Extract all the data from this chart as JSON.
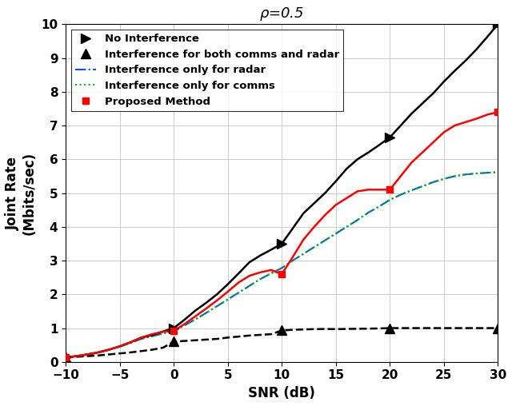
{
  "title": "$\\rho$=0.5",
  "xlabel": "SNR (dB)",
  "ylabel": "Joint Rate\n(Mbits/sec)",
  "xlim": [
    -10,
    30
  ],
  "ylim": [
    0,
    10
  ],
  "xticks": [
    -10,
    -5,
    0,
    5,
    10,
    15,
    20,
    25,
    30
  ],
  "yticks": [
    0,
    1,
    2,
    3,
    4,
    5,
    6,
    7,
    8,
    9,
    10
  ],
  "snr_dense": [
    -10,
    -9,
    -8,
    -7,
    -6,
    -5,
    -4,
    -3,
    -2,
    -1,
    0,
    1,
    2,
    3,
    4,
    5,
    6,
    7,
    8,
    9,
    10,
    11,
    12,
    13,
    14,
    15,
    16,
    17,
    18,
    19,
    20,
    21,
    22,
    23,
    24,
    25,
    26,
    27,
    28,
    29,
    30
  ],
  "snr_markers": [
    -10,
    0,
    10,
    20,
    30
  ],
  "no_interference_dense": [
    0.13,
    0.17,
    0.22,
    0.28,
    0.36,
    0.46,
    0.58,
    0.72,
    0.79,
    0.9,
    1.0,
    1.25,
    1.52,
    1.75,
    2.0,
    2.3,
    2.62,
    2.95,
    3.15,
    3.32,
    3.5,
    3.95,
    4.4,
    4.7,
    5.0,
    5.35,
    5.72,
    6.0,
    6.2,
    6.42,
    6.65,
    7.0,
    7.35,
    7.65,
    7.95,
    8.3,
    8.62,
    8.92,
    9.25,
    9.62,
    10.0
  ],
  "no_interference_markers": [
    0.13,
    1.0,
    3.5,
    6.65,
    10.0
  ],
  "both_interference_dense": [
    0.13,
    0.15,
    0.17,
    0.19,
    0.22,
    0.25,
    0.28,
    0.32,
    0.36,
    0.42,
    0.6,
    0.62,
    0.64,
    0.66,
    0.68,
    0.72,
    0.75,
    0.78,
    0.8,
    0.82,
    0.93,
    0.95,
    0.96,
    0.97,
    0.975,
    0.97,
    0.975,
    0.98,
    0.985,
    0.99,
    1.0,
    1.0,
    1.0,
    1.0,
    1.0,
    1.0,
    1.0,
    1.0,
    1.0,
    1.0,
    1.0
  ],
  "both_interference_markers": [
    0.13,
    0.6,
    0.93,
    1.0,
    1.0
  ],
  "radar_only_dense": [
    0.13,
    0.17,
    0.22,
    0.28,
    0.36,
    0.45,
    0.56,
    0.68,
    0.76,
    0.84,
    0.92,
    1.08,
    1.26,
    1.45,
    1.65,
    1.85,
    2.05,
    2.25,
    2.45,
    2.62,
    2.78,
    3.0,
    3.2,
    3.4,
    3.6,
    3.8,
    4.0,
    4.2,
    4.42,
    4.6,
    4.8,
    4.95,
    5.08,
    5.2,
    5.32,
    5.42,
    5.5,
    5.55,
    5.58,
    5.6,
    5.62
  ],
  "comms_only_dense": [
    0.13,
    0.17,
    0.22,
    0.28,
    0.36,
    0.45,
    0.56,
    0.68,
    0.76,
    0.84,
    0.92,
    1.08,
    1.26,
    1.45,
    1.65,
    1.85,
    2.05,
    2.25,
    2.45,
    2.62,
    2.78,
    3.0,
    3.2,
    3.4,
    3.6,
    3.8,
    4.0,
    4.2,
    4.42,
    4.6,
    4.8,
    4.95,
    5.08,
    5.2,
    5.32,
    5.42,
    5.5,
    5.55,
    5.58,
    5.6,
    5.62
  ],
  "proposed_dense": [
    0.13,
    0.17,
    0.22,
    0.28,
    0.36,
    0.46,
    0.58,
    0.72,
    0.82,
    0.89,
    0.92,
    1.12,
    1.35,
    1.58,
    1.82,
    2.08,
    2.35,
    2.55,
    2.65,
    2.72,
    2.6,
    3.1,
    3.62,
    4.0,
    4.35,
    4.65,
    4.85,
    5.05,
    5.1,
    5.1,
    5.1,
    5.5,
    5.9,
    6.2,
    6.5,
    6.8,
    7.0,
    7.1,
    7.2,
    7.32,
    7.4
  ],
  "proposed_markers_snr": [
    -10,
    0,
    10,
    20,
    30
  ],
  "proposed_markers_val": [
    0.13,
    0.92,
    2.6,
    5.1,
    7.4
  ],
  "colors": {
    "no_interference": "#000000",
    "both_interference": "#000000",
    "radar_only": "#0055ff",
    "comms_only": "#00bb00",
    "proposed": "#ff0000"
  }
}
